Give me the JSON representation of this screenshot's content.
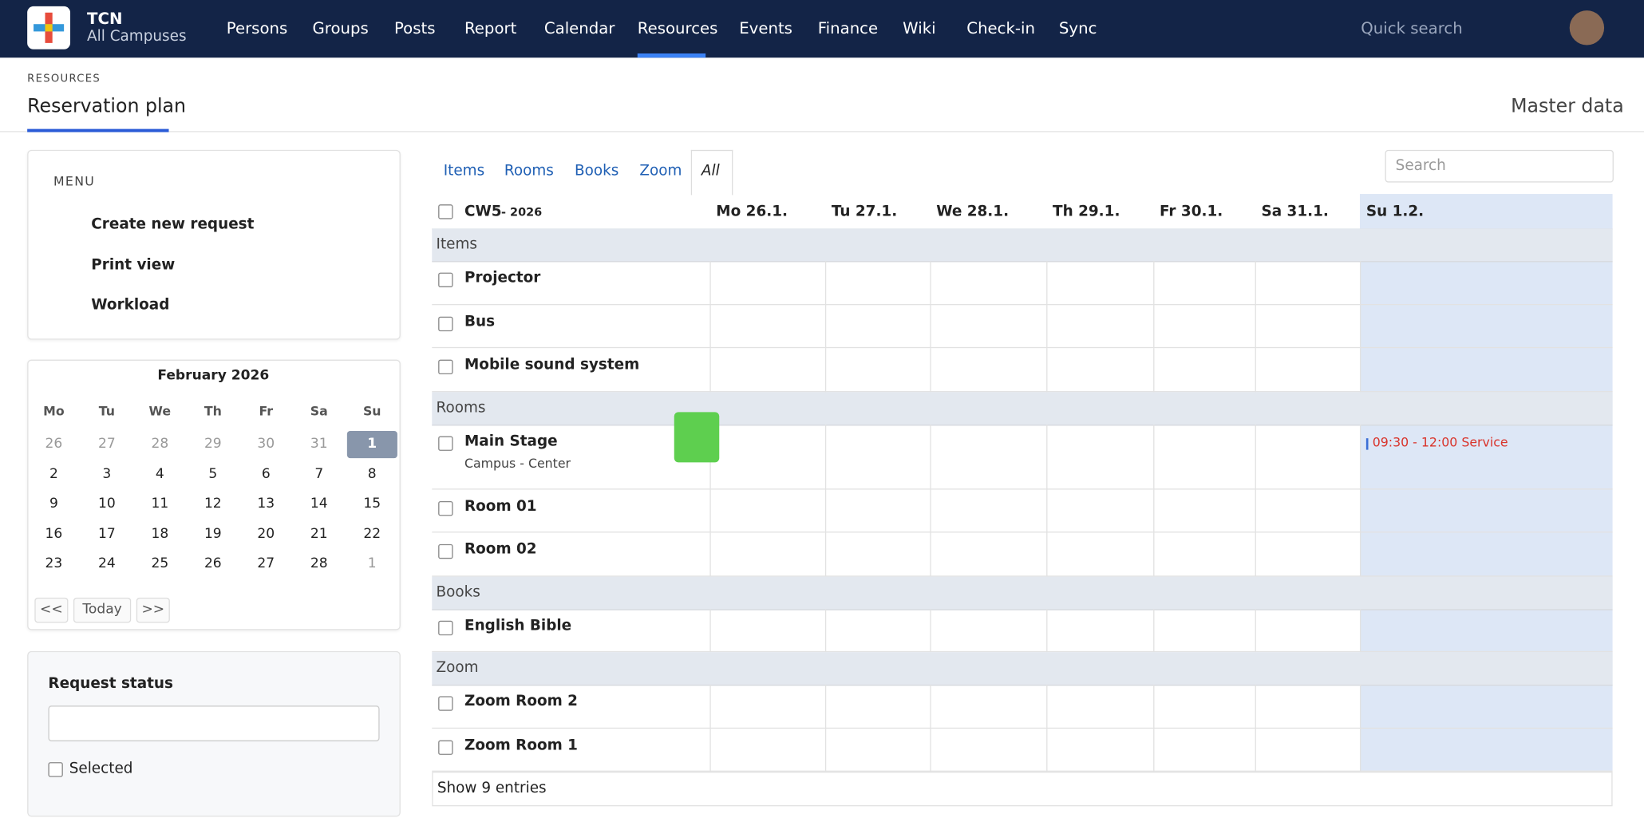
{
  "header": {
    "brand": "TCN",
    "campus": "All Campuses",
    "nav": [
      "Persons",
      "Groups",
      "Posts",
      "Report",
      "Calendar",
      "Resources",
      "Events",
      "Finance",
      "Wiki",
      "Check-in",
      "Sync"
    ],
    "search": "Quick search"
  },
  "page": {
    "breadcrumb": "RESOURCES",
    "title": "Reservation plan",
    "master_data": "Master data"
  },
  "menu": {
    "title": "MENU",
    "items": [
      "Create new request",
      "Print view",
      "Workload"
    ]
  },
  "calendar": {
    "month": "February 2026",
    "weekdays": [
      "Mo",
      "Tu",
      "We",
      "Th",
      "Fr",
      "Sa",
      "Su"
    ],
    "weeks": [
      [
        26,
        27,
        28,
        29,
        30,
        31,
        1
      ],
      [
        2,
        3,
        4,
        5,
        6,
        7,
        8
      ],
      [
        9,
        10,
        11,
        12,
        13,
        14,
        15
      ],
      [
        16,
        17,
        18,
        19,
        20,
        21,
        22
      ],
      [
        23,
        24,
        25,
        26,
        27,
        28,
        1
      ]
    ],
    "buttons": [
      "<<",
      "Today",
      ">>"
    ]
  },
  "request_status": {
    "title": "Request status",
    "checkbox": "Selected"
  },
  "tabs": [
    "Items",
    "Rooms",
    "Books",
    "Zoom",
    "All"
  ],
  "search": "Search",
  "grid": {
    "week": "CW5",
    "year": "- 2026",
    "days": [
      "Mo 26.1.",
      "Tu 27.1.",
      "We 28.1.",
      "Th 29.1.",
      "Fr 30.1.",
      "Sa 31.1.",
      "Su 1.2."
    ],
    "groups": [
      {
        "name": "Items",
        "rows": [
          {
            "name": "Projector"
          },
          {
            "name": "Bus"
          },
          {
            "name": "Mobile sound system"
          }
        ]
      },
      {
        "name": "Rooms",
        "rows": [
          {
            "name": "Main Stage",
            "sub": "Campus - Center",
            "event": "09:30 - 12:00 Service"
          },
          {
            "name": "Room 01"
          },
          {
            "name": "Room 02"
          }
        ]
      },
      {
        "name": "Books",
        "rows": [
          {
            "name": "English Bible"
          }
        ]
      },
      {
        "name": "Zoom",
        "rows": [
          {
            "name": "Zoom Room 2"
          },
          {
            "name": "Zoom Room 1"
          }
        ]
      }
    ],
    "footer": "Show 9 entries"
  }
}
